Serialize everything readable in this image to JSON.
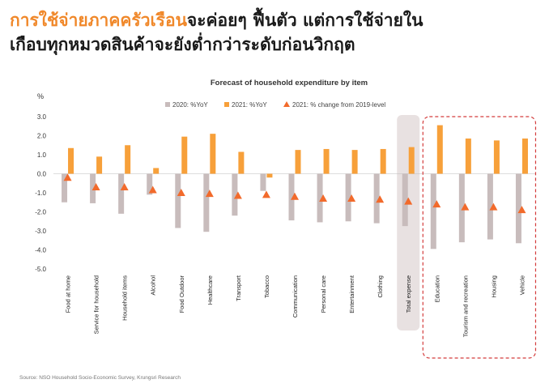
{
  "headline": {
    "highlight": "การใช้จ่ายภาคครัวเรือน",
    "line1_rest": "จะค่อยๆ ฟื้นตัว แต่การใช้จ่ายใน",
    "line2": "เกือบทุกหมวดสินค้าจะยังต่ำกว่าระดับก่อนวิกฤต"
  },
  "source": "Source: NSO Household Socio-Economic Survey, Krungsri Research",
  "colors": {
    "series_2020": "#c8bcbc",
    "series_2021": "#f7a03a",
    "change_vs_2019": "#f26a2b",
    "highlight_band": "#e8e1e1",
    "dashed_box": "#d33c3c"
  },
  "chart_data": {
    "type": "bar",
    "title": "Forecast of household expenditure by item",
    "ylabel": "%",
    "ylim": [
      -5.0,
      3.0
    ],
    "yticks": [
      "3.0",
      "2.0",
      "1.0",
      "0.0",
      "-1.0",
      "-2.0",
      "-3.0",
      "-4.0",
      "-5.0"
    ],
    "legend_position": "top",
    "grid": false,
    "categories": [
      "Food at home",
      "Service for household",
      "Household items",
      "Alcohol",
      "Food Outdoor",
      "Healthcare",
      "Transport",
      "Tobacco",
      "Communication",
      "Personal care",
      "Entertainment",
      "Clothing",
      "Total expense",
      "Education",
      "Tourism and recreation",
      "Housing",
      "Vehicle"
    ],
    "series": [
      {
        "name": "2020: %YoY",
        "kind": "bar",
        "values": [
          -1.5,
          -1.55,
          -2.1,
          -1.1,
          -2.85,
          -3.05,
          -2.2,
          -0.9,
          -2.45,
          -2.55,
          -2.5,
          -2.6,
          -2.75,
          -3.95,
          -3.6,
          -3.45,
          -3.65
        ]
      },
      {
        "name": "2021: %YoY",
        "kind": "bar",
        "values": [
          1.35,
          0.9,
          1.5,
          0.3,
          1.95,
          2.1,
          1.15,
          -0.2,
          1.25,
          1.3,
          1.25,
          1.3,
          1.4,
          2.55,
          1.85,
          1.75,
          1.85
        ]
      },
      {
        "name": "2021: % change from 2019-level",
        "kind": "marker",
        "values": [
          -0.2,
          -0.7,
          -0.7,
          -0.85,
          -1.0,
          -1.05,
          -1.15,
          -1.1,
          -1.2,
          -1.3,
          -1.3,
          -1.35,
          -1.45,
          -1.6,
          -1.75,
          -1.75,
          -1.9
        ]
      }
    ]
  }
}
